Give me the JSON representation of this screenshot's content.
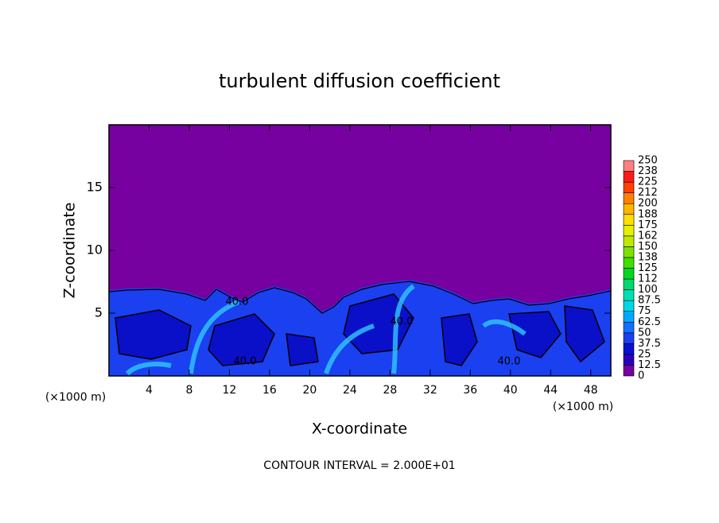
{
  "chart_data": {
    "type": "contour",
    "title": "turbulent diffusion coefficient",
    "x_label": "X-coordinate",
    "y_label": "Z-coordinate",
    "x_unit": "(×1000 m)",
    "y_unit": "(×1000 m)",
    "footer": "CONTOUR INTERVAL = 2.000E+01",
    "contour_labels": [
      "40.0",
      "40.0",
      "40.0",
      "40.0"
    ],
    "xlim": [
      0,
      50
    ],
    "ylim": [
      0,
      20
    ],
    "xticks": [
      4,
      8,
      12,
      16,
      20,
      24,
      28,
      32,
      36,
      40,
      44,
      48
    ],
    "yticks": [
      5,
      10,
      15
    ],
    "colorbar": {
      "levels": [
        0,
        12.5,
        25,
        37.5,
        50,
        62.5,
        75,
        87.5,
        100,
        {
          "value": 112.5,
          "label": "112"
        },
        125,
        {
          "value": 137.5,
          "label": "138"
        },
        150,
        {
          "value": 162.5,
          "label": "162"
        },
        175,
        {
          "value": 187.5,
          "label": "188"
        },
        200,
        {
          "value": 212.5,
          "label": "212"
        },
        225,
        {
          "value": 237.5,
          "label": "238"
        },
        250
      ],
      "colors": [
        "#7700a0",
        "#2a00c0",
        "#0a10d0",
        "#1a40f0",
        "#1070ff",
        "#00a8ff",
        "#00d8e8",
        "#00e0b0",
        "#00d870",
        "#00d820",
        "#40e000",
        "#80e000",
        "#c0e800",
        "#e8f000",
        "#ffe000",
        "#ffb400",
        "#ff8000",
        "#ff4000",
        "#ff1a1a",
        "#ff8080"
      ]
    }
  }
}
